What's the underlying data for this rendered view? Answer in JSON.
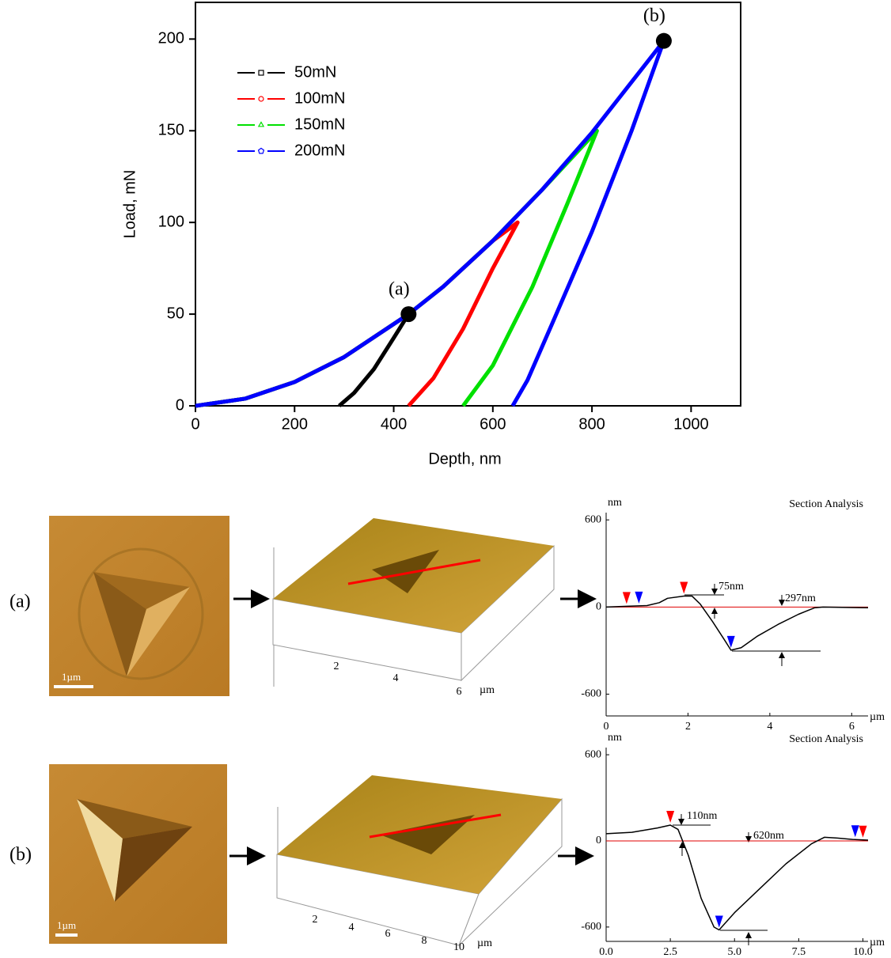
{
  "chart_data": [
    {
      "type": "line",
      "x_label": "Depth, nm",
      "y_label": "Load, mN",
      "xlim": [
        0,
        1100
      ],
      "ylim": [
        0,
        220
      ],
      "xticks": [
        0,
        200,
        400,
        600,
        800,
        1000
      ],
      "yticks": [
        0,
        50,
        100,
        150,
        200
      ],
      "annotations": [
        "(a)",
        "(b)"
      ],
      "series": [
        {
          "name": "50mN",
          "color": "#000000",
          "marker": "square",
          "x": [
            0,
            100,
            200,
            300,
            430,
            400,
            360,
            320,
            290
          ],
          "values": [
            0,
            3.9,
            13,
            26.6,
            50,
            37,
            20,
            7,
            0
          ]
        },
        {
          "name": "100mN",
          "color": "#ff0000",
          "marker": "circle",
          "x": [
            0,
            100,
            200,
            300,
            430,
            500,
            600,
            650,
            600,
            540,
            480,
            430
          ],
          "values": [
            0,
            3.9,
            13,
            26.6,
            50,
            65,
            90,
            100,
            75,
            42,
            15,
            0
          ]
        },
        {
          "name": "150mN",
          "color": "#00e000",
          "marker": "triangle",
          "x": [
            0,
            100,
            200,
            300,
            430,
            500,
            600,
            700,
            810,
            750,
            680,
            600,
            540
          ],
          "values": [
            0,
            3.9,
            13,
            26.6,
            50,
            65,
            90,
            118,
            150,
            110,
            65,
            22,
            0
          ]
        },
        {
          "name": "200mN",
          "color": "#0000ff",
          "marker": "pentagon",
          "x": [
            0,
            100,
            200,
            300,
            430,
            500,
            600,
            700,
            800,
            945,
            880,
            800,
            720,
            670,
            640
          ],
          "values": [
            0,
            3.9,
            13,
            26.6,
            50,
            65,
            90,
            118,
            149,
            199,
            150,
            95,
            45,
            14,
            0
          ]
        }
      ]
    },
    {
      "type": "line",
      "title": "Section Analysis",
      "y_unit": "nm",
      "x_unit": "µm",
      "xlim": [
        0,
        6.4
      ],
      "ylim": [
        -750,
        650
      ],
      "xticks": [
        0,
        2,
        4,
        6
      ],
      "yticks": [
        -600,
        0,
        600
      ],
      "annotations": [
        "75nm",
        "297nm"
      ],
      "series": [
        {
          "color": "#000000",
          "x": [
            0,
            0.5,
            1,
            1.3,
            1.5,
            1.9,
            2.1,
            2.3,
            2.6,
            2.9,
            3.05,
            3.3,
            3.7,
            4.2,
            4.7,
            5.1,
            5.3,
            6.4
          ],
          "values": [
            0,
            5,
            10,
            30,
            60,
            75,
            75,
            20,
            -100,
            -230,
            -297,
            -280,
            -200,
            -120,
            -50,
            -5,
            0,
            -5
          ]
        }
      ],
      "cursors": [
        {
          "x": 0.5,
          "color": "#ff0000"
        },
        {
          "x": 0.8,
          "color": "#0000ff"
        },
        {
          "x": 1.9,
          "color": "#ff0000"
        },
        {
          "x": 3.05,
          "color": "#0000ff"
        }
      ]
    },
    {
      "type": "line",
      "title": "Section Analysis",
      "y_unit": "nm",
      "x_unit": "µm",
      "xlim": [
        0,
        10.2
      ],
      "ylim": [
        -700,
        650
      ],
      "xticks": [
        {
          "value": 0,
          "label": "0.0"
        },
        {
          "value": 2.5,
          "label": "2.5"
        },
        {
          "value": 5,
          "label": "5.0"
        },
        {
          "value": 7.5,
          "label": "7.5"
        },
        {
          "value": 10,
          "label": "10.0"
        }
      ],
      "yticks": [
        -600,
        0,
        600
      ],
      "annotations": [
        "110nm",
        "620nm"
      ],
      "series": [
        {
          "color": "#000000",
          "x": [
            0,
            1,
            2,
            2.5,
            2.8,
            3.2,
            3.7,
            4.2,
            4.4,
            5,
            6,
            7,
            8,
            8.5,
            9,
            9.6,
            10.2
          ],
          "values": [
            50,
            60,
            90,
            110,
            80,
            -100,
            -400,
            -600,
            -620,
            -500,
            -330,
            -160,
            -20,
            25,
            20,
            10,
            5
          ]
        }
      ],
      "cursors": [
        {
          "x": 2.5,
          "color": "#ff0000"
        },
        {
          "x": 4.4,
          "color": "#0000ff"
        },
        {
          "x": 9.7,
          "color": "#0000ff"
        },
        {
          "x": 10,
          "color": "#ff0000"
        }
      ]
    }
  ],
  "panels": [
    {
      "label": "(a)",
      "scale_bar": "1µm",
      "axis_ticks": [
        "2",
        "4",
        "6"
      ],
      "axis_unit": "µm"
    },
    {
      "label": "(b)",
      "scale_bar": "1µm",
      "axis_ticks": [
        "2",
        "4",
        "6",
        "8",
        "10"
      ],
      "axis_unit": "µm"
    }
  ]
}
